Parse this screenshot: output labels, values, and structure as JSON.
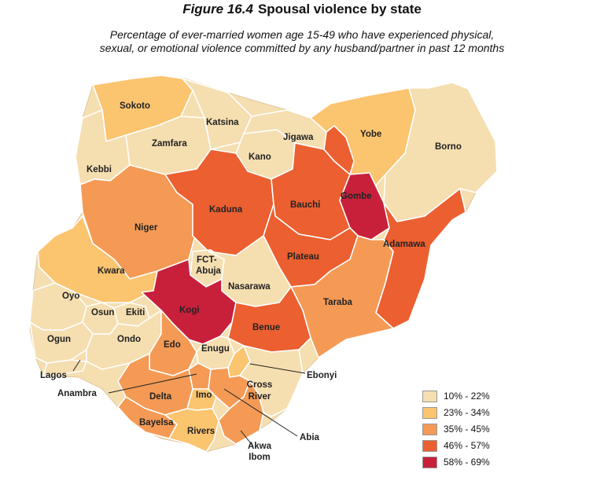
{
  "figure": {
    "number": "Figure 16.4",
    "title": "Spousal violence by state"
  },
  "subtitle_line1": "Percentage of ever-married women age 15-49 who have experienced physical,",
  "subtitle_line2": "sexual, or emotional violence committed by any husband/partner in past 12 months",
  "colors": {
    "c1": "#f5deb0",
    "c2": "#fbc46f",
    "c3": "#f49a55",
    "c4": "#ec5f30",
    "c5": "#c8203b"
  },
  "legend": [
    {
      "label": "10% - 22%",
      "color": "#f5deb0"
    },
    {
      "label": "23% - 34%",
      "color": "#fbc46f"
    },
    {
      "label": "35% - 45%",
      "color": "#f49a55"
    },
    {
      "label": "46% - 57%",
      "color": "#ec5f30"
    },
    {
      "label": "58% - 69%",
      "color": "#c8203b"
    }
  ],
  "states": {
    "sokoto": "Sokoto",
    "katsina": "Katsina",
    "jigawa": "Jigawa",
    "yobe": "Yobe",
    "borno": "Borno",
    "zamfara": "Zamfara",
    "kano": "Kano",
    "kebbi": "Kebbi",
    "gombe": "Gombe",
    "kaduna": "Kaduna",
    "bauchi": "Bauchi",
    "niger": "Niger",
    "adamawa": "Adamawa",
    "fct": "FCT-",
    "abuja": "Abuja",
    "plateau": "Plateau",
    "kwara": "Kwara",
    "nasarawa": "Nasarawa",
    "oyo": "Oyo",
    "kogi": "Kogi",
    "taraba": "Taraba",
    "osun": "Osun",
    "ekiti": "Ekiti",
    "benue": "Benue",
    "ogun": "Ogun",
    "ondo": "Ondo",
    "edo": "Edo",
    "enugu": "Enugu",
    "lagos": "Lagos",
    "ebonyi": "Ebonyi",
    "anambra": "Anambra",
    "cross": "Cross",
    "river": "River",
    "delta": "Delta",
    "imo": "Imo",
    "bayelsa": "Bayelsa",
    "rivers": "Rivers",
    "abia": "Abia",
    "akwa": "Akwa",
    "ibom": "Ibom"
  },
  "state_bins": {
    "sokoto": "23% - 34%",
    "katsina": "10% - 22%",
    "jigawa": "10% - 22%",
    "yobe": "23% - 34%",
    "borno": "10% - 22%",
    "zamfara": "10% - 22%",
    "kano": "10% - 22%",
    "kebbi": "10% - 22%",
    "gombe": "58% - 69%",
    "kaduna": "46% - 57%",
    "bauchi": "46% - 57%",
    "niger": "35% - 45%",
    "adamawa": "46% - 57%",
    "fct_abuja": "10% - 22%",
    "plateau": "46% - 57%",
    "kwara": "23% - 34%",
    "nasarawa": "10% - 22%",
    "oyo": "10% - 22%",
    "kogi": "58% - 69%",
    "taraba": "35% - 45%",
    "osun": "10% - 22%",
    "ekiti": "10% - 22%",
    "benue": "46% - 57%",
    "ogun": "10% - 22%",
    "ondo": "10% - 22%",
    "edo": "35% - 45%",
    "enugu": "10% - 22%",
    "lagos": "10% - 22%",
    "ebonyi": "23% - 34%",
    "anambra": "35% - 45%",
    "cross_river": "10% - 22%",
    "delta": "35% - 45%",
    "imo": "23% - 34%",
    "bayelsa": "35% - 45%",
    "rivers": "23% - 34%",
    "abia": "35% - 45%",
    "akwa_ibom": "35% - 45%"
  }
}
